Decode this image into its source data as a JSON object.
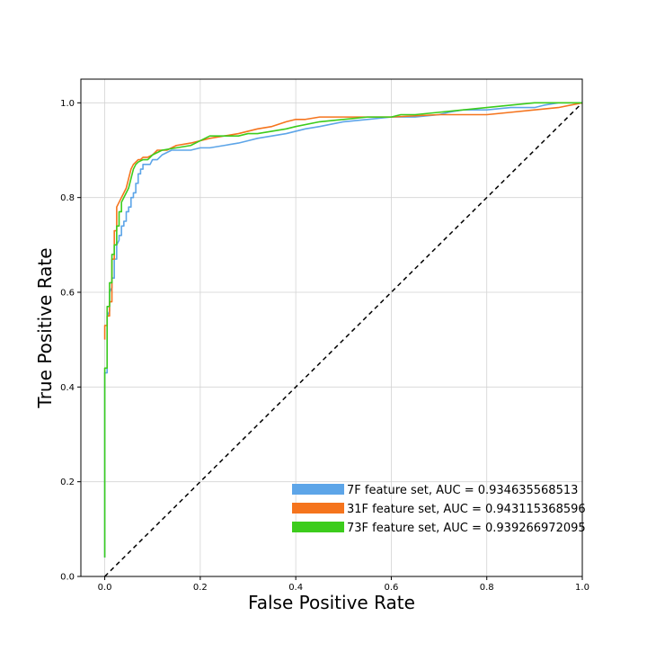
{
  "chart_data": {
    "type": "line",
    "title": "",
    "xlabel": "False Positive Rate",
    "ylabel": "True Positive Rate",
    "xlim": [
      -0.05,
      1.0
    ],
    "ylim": [
      0.0,
      1.05
    ],
    "xticks": [
      "0.0",
      "0.2",
      "0.4",
      "0.6",
      "0.8",
      "1.0"
    ],
    "yticks": [
      "0.0",
      "0.2",
      "0.4",
      "0.6",
      "0.8",
      "1.0"
    ],
    "grid": true,
    "legend_position": "bottom-right",
    "series": [
      {
        "name": "7F feature set, AUC = 0.934635568513",
        "color": "#5da5e8",
        "x": [
          0.0,
          0.0,
          0.005,
          0.005,
          0.01,
          0.01,
          0.015,
          0.015,
          0.02,
          0.02,
          0.025,
          0.025,
          0.03,
          0.03,
          0.035,
          0.035,
          0.04,
          0.04,
          0.045,
          0.045,
          0.05,
          0.05,
          0.055,
          0.055,
          0.06,
          0.06,
          0.065,
          0.065,
          0.07,
          0.07,
          0.075,
          0.075,
          0.08,
          0.08,
          0.085,
          0.085,
          0.09,
          0.095,
          0.1,
          0.11,
          0.12,
          0.14,
          0.16,
          0.18,
          0.2,
          0.22,
          0.25,
          0.28,
          0.3,
          0.32,
          0.35,
          0.38,
          0.4,
          0.42,
          0.45,
          0.5,
          0.55,
          0.6,
          0.65,
          0.7,
          0.72,
          0.75,
          0.8,
          0.85,
          0.9,
          0.92,
          0.95,
          1.0
        ],
        "y": [
          0.04,
          0.43,
          0.43,
          0.55,
          0.56,
          0.6,
          0.61,
          0.63,
          0.63,
          0.67,
          0.67,
          0.7,
          0.71,
          0.72,
          0.72,
          0.74,
          0.74,
          0.75,
          0.75,
          0.77,
          0.77,
          0.78,
          0.78,
          0.8,
          0.8,
          0.81,
          0.81,
          0.83,
          0.83,
          0.85,
          0.85,
          0.86,
          0.86,
          0.87,
          0.87,
          0.87,
          0.87,
          0.87,
          0.88,
          0.88,
          0.89,
          0.9,
          0.9,
          0.9,
          0.905,
          0.905,
          0.91,
          0.915,
          0.92,
          0.925,
          0.93,
          0.935,
          0.94,
          0.945,
          0.95,
          0.96,
          0.965,
          0.97,
          0.97,
          0.975,
          0.98,
          0.985,
          0.985,
          0.99,
          0.99,
          0.995,
          1.0,
          1.0
        ]
      },
      {
        "name": "31F feature set, AUC = 0.943115368596",
        "color": "#f5741d",
        "x": [
          0.0,
          0.0,
          0.005,
          0.005,
          0.01,
          0.01,
          0.015,
          0.015,
          0.02,
          0.02,
          0.025,
          0.025,
          0.03,
          0.035,
          0.04,
          0.045,
          0.05,
          0.055,
          0.06,
          0.065,
          0.07,
          0.075,
          0.08,
          0.09,
          0.1,
          0.11,
          0.13,
          0.15,
          0.18,
          0.2,
          0.22,
          0.25,
          0.28,
          0.3,
          0.32,
          0.35,
          0.38,
          0.4,
          0.42,
          0.45,
          0.5,
          0.55,
          0.6,
          0.7,
          0.75,
          0.8,
          0.85,
          0.9,
          0.95,
          1.0
        ],
        "y": [
          0.5,
          0.53,
          0.53,
          0.55,
          0.55,
          0.58,
          0.58,
          0.67,
          0.67,
          0.73,
          0.73,
          0.78,
          0.79,
          0.8,
          0.81,
          0.82,
          0.84,
          0.86,
          0.87,
          0.875,
          0.88,
          0.88,
          0.885,
          0.885,
          0.89,
          0.9,
          0.9,
          0.91,
          0.915,
          0.92,
          0.925,
          0.93,
          0.935,
          0.94,
          0.945,
          0.95,
          0.96,
          0.965,
          0.965,
          0.97,
          0.97,
          0.97,
          0.97,
          0.975,
          0.975,
          0.975,
          0.98,
          0.985,
          0.99,
          1.0
        ]
      },
      {
        "name": "73F feature set, AUC = 0.939266972095",
        "color": "#3ccc1c",
        "x": [
          0.0,
          0.0,
          0.005,
          0.005,
          0.01,
          0.01,
          0.015,
          0.015,
          0.02,
          0.02,
          0.025,
          0.025,
          0.03,
          0.03,
          0.035,
          0.035,
          0.04,
          0.045,
          0.05,
          0.055,
          0.06,
          0.065,
          0.07,
          0.08,
          0.09,
          0.1,
          0.12,
          0.15,
          0.18,
          0.2,
          0.22,
          0.25,
          0.28,
          0.3,
          0.32,
          0.35,
          0.38,
          0.4,
          0.45,
          0.5,
          0.55,
          0.6,
          0.62,
          0.65,
          0.7,
          0.8,
          0.9,
          0.95,
          1.0
        ],
        "y": [
          0.04,
          0.44,
          0.44,
          0.57,
          0.57,
          0.62,
          0.62,
          0.68,
          0.68,
          0.7,
          0.7,
          0.74,
          0.74,
          0.77,
          0.77,
          0.79,
          0.8,
          0.81,
          0.82,
          0.84,
          0.86,
          0.87,
          0.875,
          0.88,
          0.88,
          0.89,
          0.9,
          0.905,
          0.91,
          0.92,
          0.93,
          0.93,
          0.93,
          0.935,
          0.935,
          0.94,
          0.945,
          0.95,
          0.96,
          0.965,
          0.97,
          0.97,
          0.975,
          0.975,
          0.98,
          0.99,
          1.0,
          1.0,
          1.0
        ]
      }
    ],
    "reference_line": {
      "x": [
        0.0,
        1.0
      ],
      "y": [
        0.0,
        1.0
      ],
      "color": "#000000",
      "style": "dashed"
    }
  }
}
